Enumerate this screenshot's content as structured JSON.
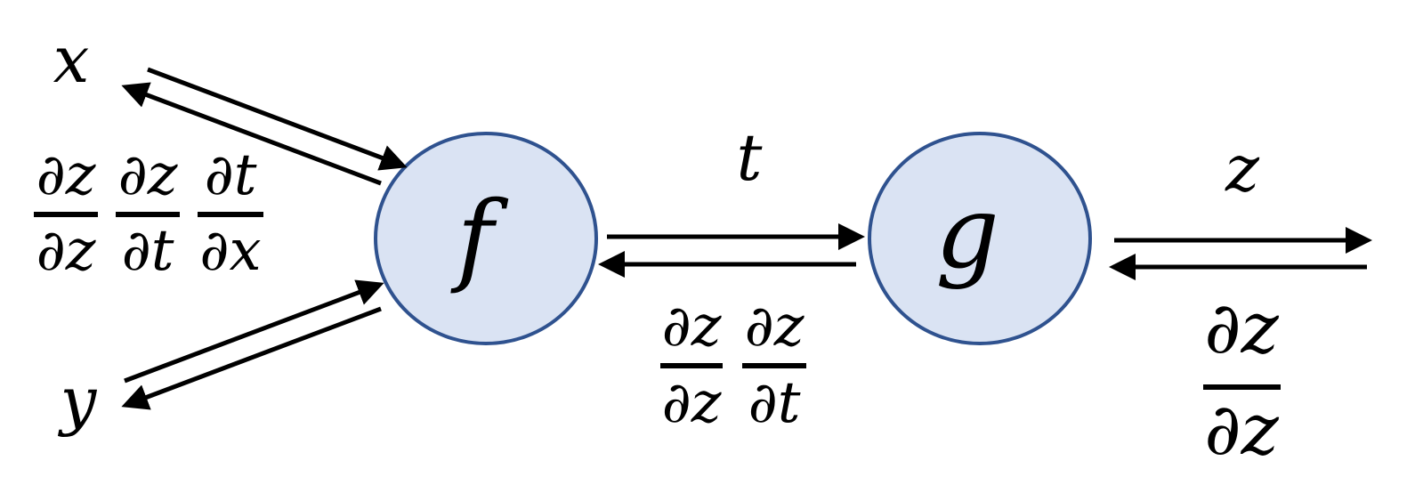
{
  "colors": {
    "node_fill": "#dae3f3",
    "node_stroke": "#2f528f",
    "arrow": "#000000",
    "text": "#000000"
  },
  "nodes": {
    "f": {
      "label": "f"
    },
    "g": {
      "label": "g"
    }
  },
  "variables": {
    "x": "x",
    "y": "y",
    "t": "t",
    "z": "z"
  },
  "gradients": {
    "left": [
      {
        "num": "∂z",
        "den": "∂z"
      },
      {
        "num": "∂z",
        "den": "∂t"
      },
      {
        "num": "∂t",
        "den": "∂x"
      }
    ],
    "middle": [
      {
        "num": "∂z",
        "den": "∂z"
      },
      {
        "num": "∂z",
        "den": "∂t"
      }
    ],
    "right": [
      {
        "num": "∂z",
        "den": "∂z"
      }
    ]
  }
}
